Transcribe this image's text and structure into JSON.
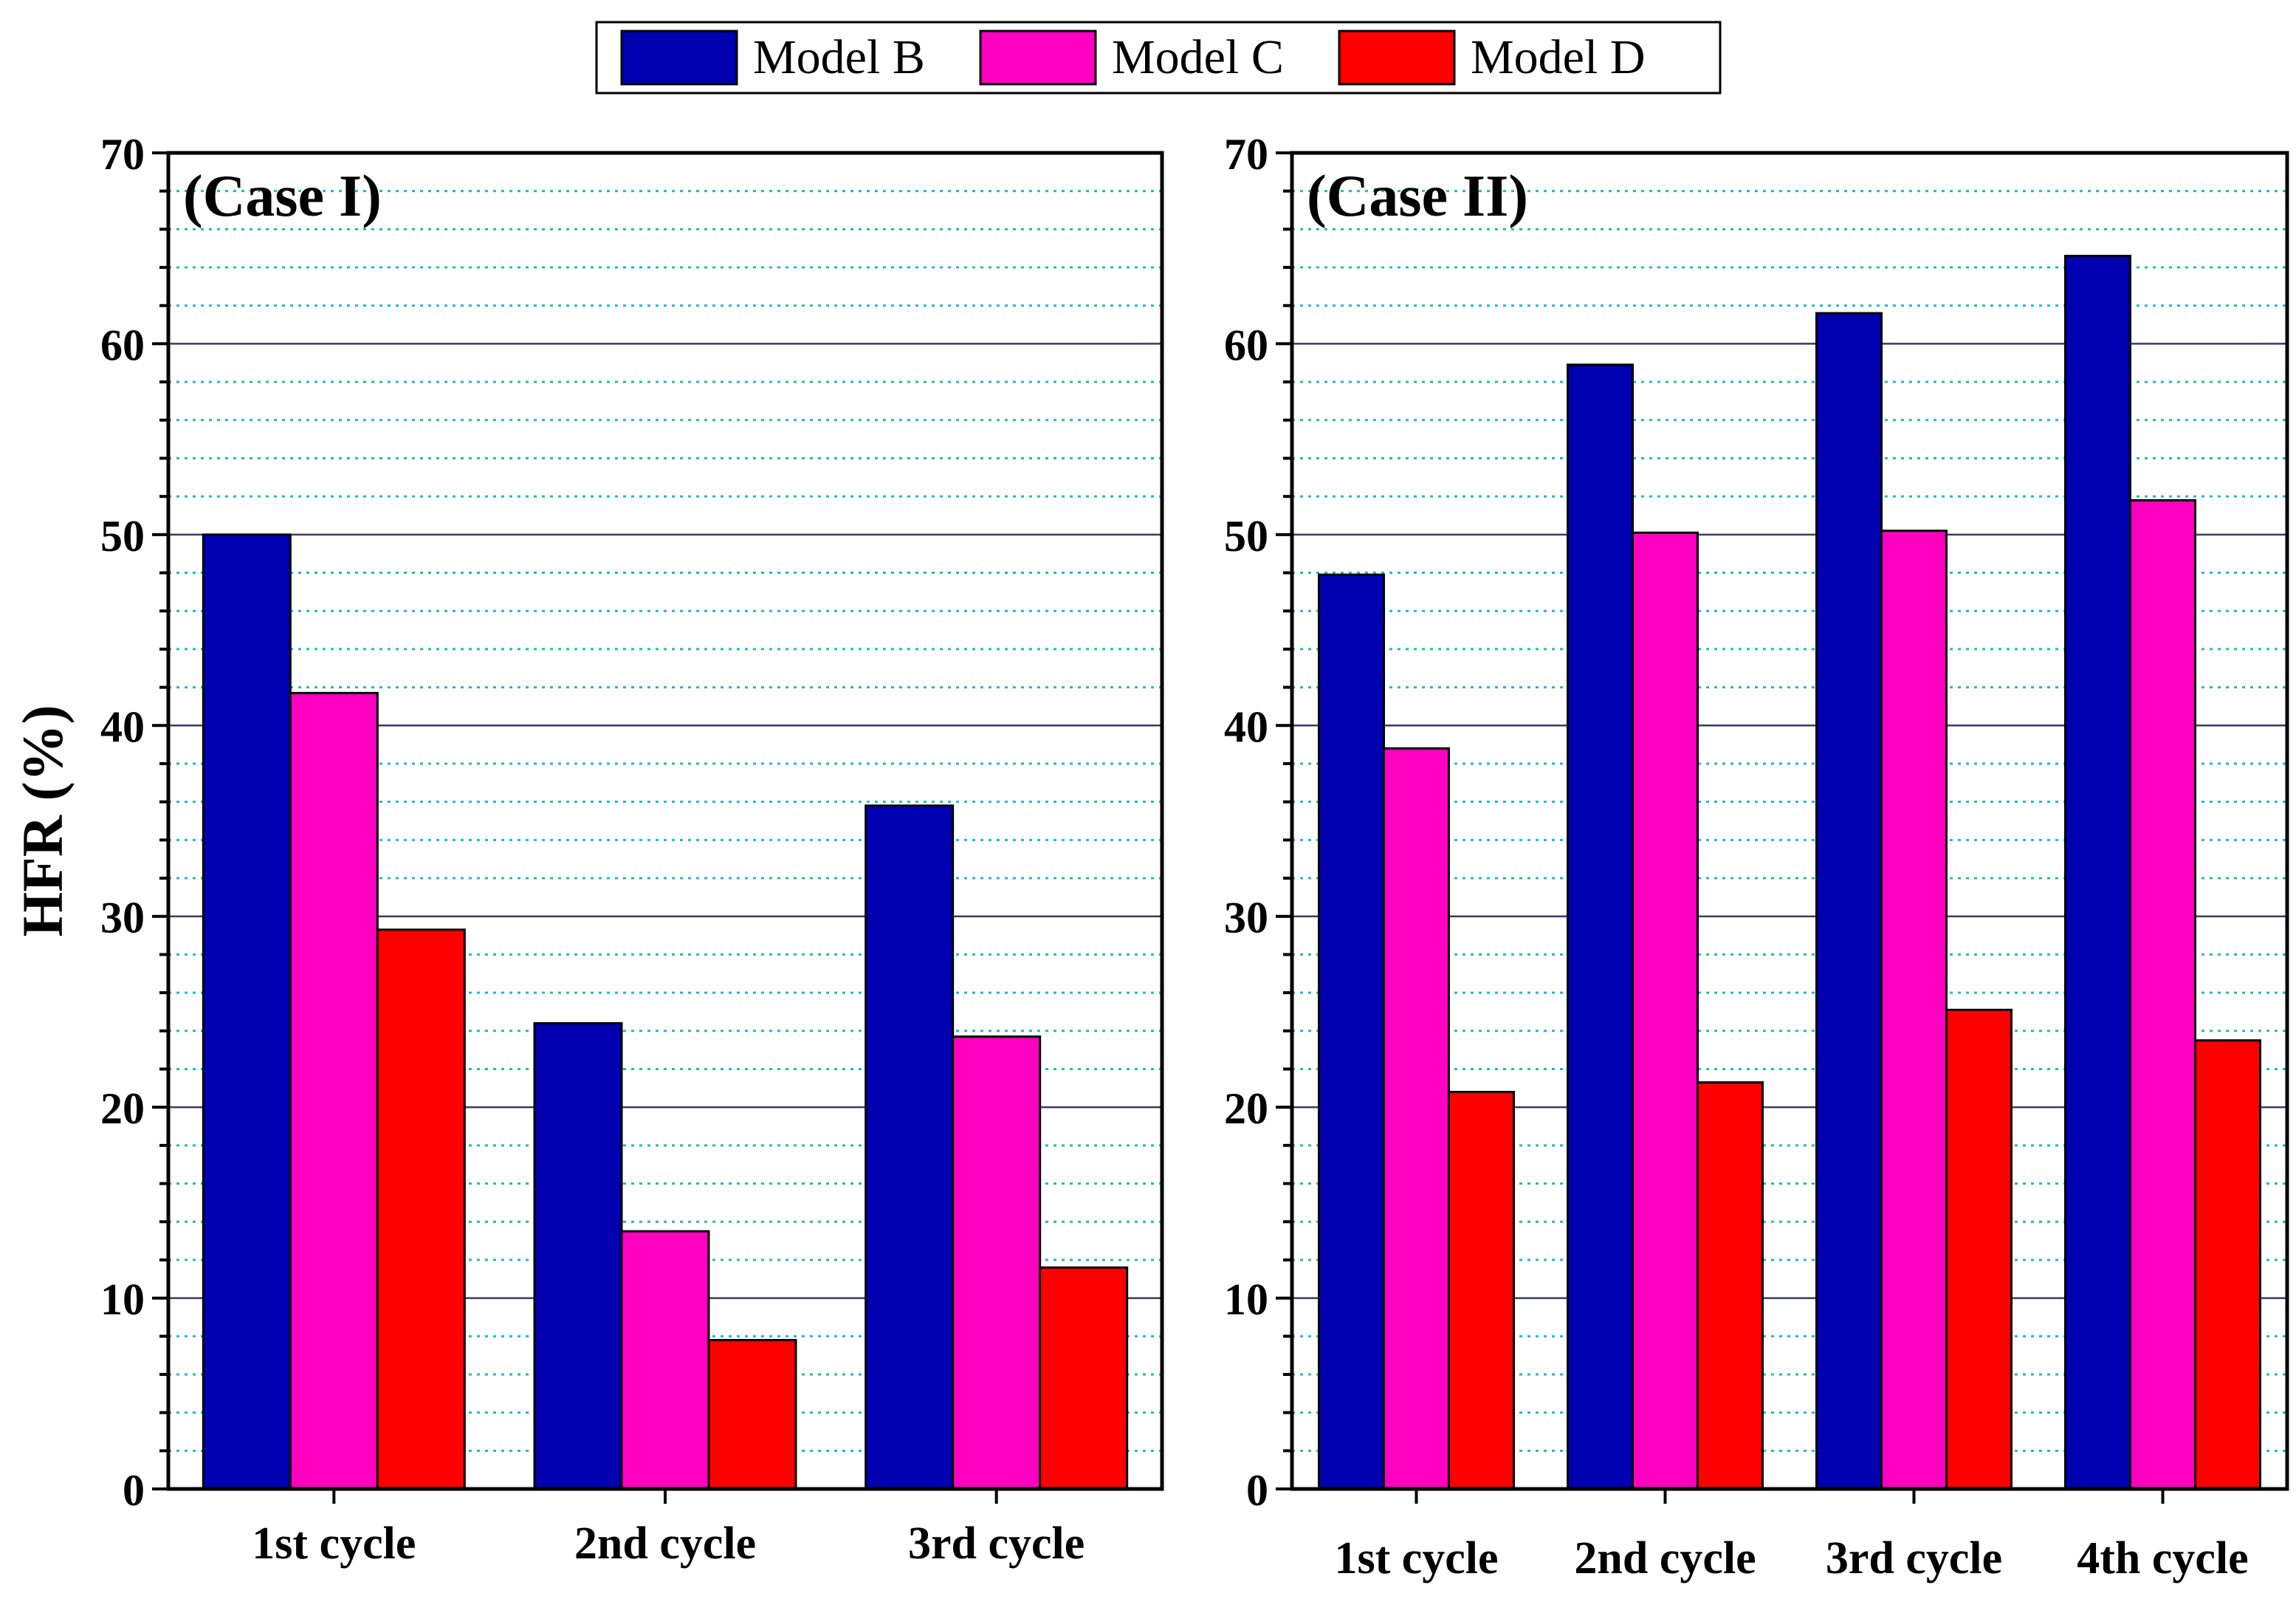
{
  "colors": {
    "model_b": "#0000b0",
    "model_c": "#ff00c0",
    "model_d": "#ff0000",
    "major_grid": "#3a3a66",
    "minor_grid": "#22b8c8"
  },
  "legend": {
    "entries": [
      "Model B",
      "Model C",
      "Model D"
    ]
  },
  "chart_data": [
    {
      "type": "bar",
      "panel_label": "(Case I)",
      "title": "",
      "xlabel": "",
      "ylabel": "HFR (%)",
      "ylim": [
        0,
        70
      ],
      "yticks": [
        "0",
        "10",
        "20",
        "30",
        "40",
        "50",
        "60",
        "70"
      ],
      "grid": true,
      "categories": [
        "1st cycle",
        "2nd cycle",
        "3rd cycle"
      ],
      "series": [
        {
          "name": "Model B",
          "values": [
            50.0,
            24.4,
            35.8
          ]
        },
        {
          "name": "Model C",
          "values": [
            41.7,
            13.5,
            23.7
          ]
        },
        {
          "name": "Model D",
          "values": [
            29.3,
            7.8,
            11.6
          ]
        }
      ]
    },
    {
      "type": "bar",
      "panel_label": "(Case II)",
      "title": "",
      "xlabel": "",
      "ylabel": "",
      "ylim": [
        0,
        70
      ],
      "yticks": [
        "0",
        "10",
        "20",
        "30",
        "40",
        "50",
        "60",
        "70"
      ],
      "grid": true,
      "categories": [
        "1st cycle",
        "2nd cycle",
        "3rd cycle",
        "4th cycle"
      ],
      "series": [
        {
          "name": "Model B",
          "values": [
            47.9,
            58.9,
            61.6,
            64.6
          ]
        },
        {
          "name": "Model C",
          "values": [
            38.8,
            50.1,
            50.2,
            51.8
          ]
        },
        {
          "name": "Model D",
          "values": [
            20.8,
            21.3,
            25.1,
            23.5
          ]
        }
      ]
    }
  ]
}
